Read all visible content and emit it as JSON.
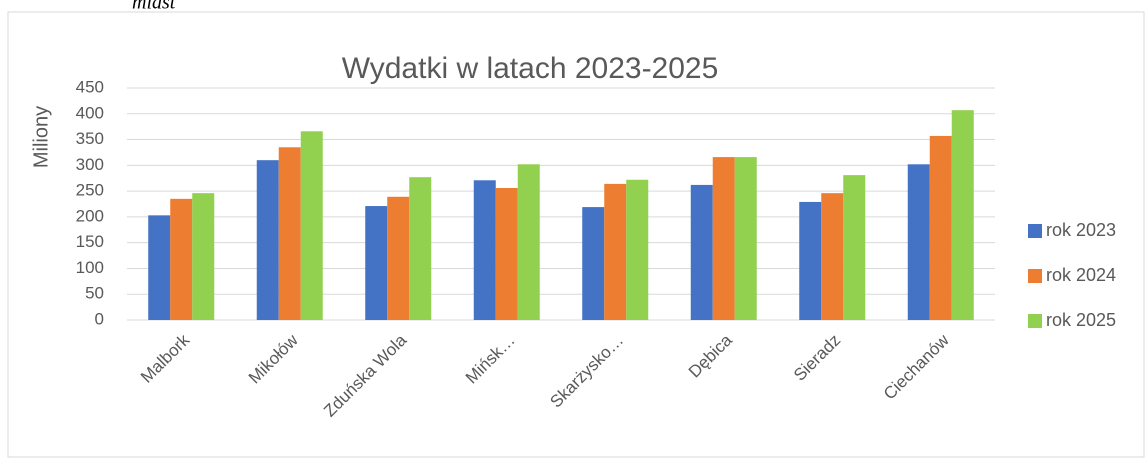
{
  "caption": "miast",
  "chart_data": {
    "type": "bar",
    "title": "Wydatki w latach 2023-2025",
    "y_label": "Miliony",
    "categories": [
      "Malbork",
      "Mikołów",
      "Zduńska Wola",
      "Mińsk…",
      "Skarżysko…",
      "Dębica",
      "Sieradz",
      "Ciechanów"
    ],
    "series": [
      {
        "name": "rok 2023",
        "color": "#4472c4",
        "values": [
          203,
          310,
          221,
          271,
          219,
          262,
          229,
          302
        ]
      },
      {
        "name": "rok 2024",
        "color": "#ed7d31",
        "values": [
          235,
          335,
          239,
          256,
          264,
          316,
          246,
          357
        ]
      },
      {
        "name": "rok 2025",
        "color": "#92d050",
        "values": [
          246,
          366,
          277,
          302,
          272,
          316,
          281,
          407
        ]
      }
    ],
    "ylim": [
      0,
      450
    ],
    "yticks": [
      0,
      50,
      100,
      150,
      200,
      250,
      300,
      350,
      400,
      450
    ],
    "grid": true,
    "legend": "right"
  }
}
